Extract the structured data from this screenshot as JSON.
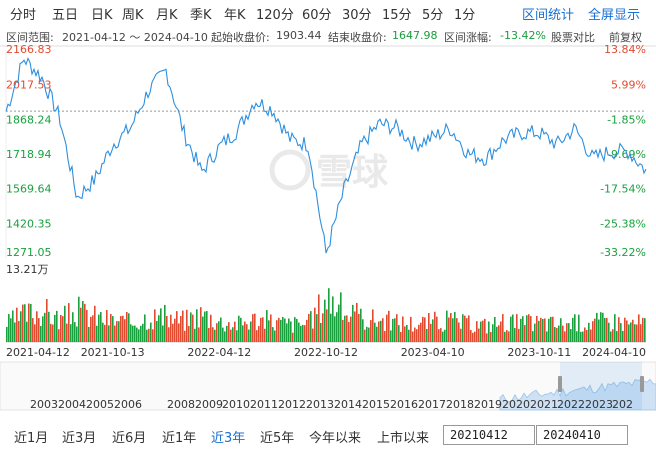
{
  "tabs": [
    "分时",
    "五日",
    "日K",
    "周K",
    "月K",
    "季K",
    "年K",
    "120分",
    "60分",
    "30分",
    "15分",
    "5分",
    "1分"
  ],
  "links": {
    "stats": "区间统计",
    "fullscreen": "全屏显示"
  },
  "info": {
    "range_label": "区间范围:",
    "range_value": "2021-04-12 ～ 2024-04-10",
    "start_label": "起始收盘价:",
    "start_value": "1903.44",
    "end_label": "结束收盘价:",
    "end_value": "1647.98",
    "change_label": "区间涨幅:",
    "change_value": "-13.42%",
    "compare": "股票对比",
    "adjust": "前复权"
  },
  "watermark": "雪球",
  "colors": {
    "line": "#2f8fdd",
    "up": "#e24a2f",
    "down": "#1aa03f",
    "accent": "#1a6fd2"
  },
  "chart_data": {
    "type": "line",
    "y_ticks_left": [
      "2166.83",
      "2017.53",
      "1868.24",
      "1718.94",
      "1569.64",
      "1420.35",
      "1271.05"
    ],
    "y_ticks_right": [
      "13.84%",
      "5.99%",
      "-1.85%",
      "-9.69%",
      "-17.54%",
      "-25.38%",
      "-33.22%"
    ],
    "ylim": [
      1271.05,
      2166.83
    ],
    "baseline": 1903.44,
    "x_labels": [
      "2021-04-12",
      "2021-10-13",
      "2022-04-12",
      "2022-10-12",
      "2023-04-10",
      "2023-10-11",
      "2024-04-10"
    ],
    "x": [
      "2021-04",
      "2021-05",
      "2021-06",
      "2021-07",
      "2021-08",
      "2021-09",
      "2021-10",
      "2021-11",
      "2021-12",
      "2022-01",
      "2022-02",
      "2022-03",
      "2022-04",
      "2022-05",
      "2022-06",
      "2022-07",
      "2022-08",
      "2022-09",
      "2022-10",
      "2022-11",
      "2022-12",
      "2023-01",
      "2023-02",
      "2023-03",
      "2023-04",
      "2023-05",
      "2023-06",
      "2023-07",
      "2023-08",
      "2023-09",
      "2023-10",
      "2023-11",
      "2023-12",
      "2024-01",
      "2024-02",
      "2024-03",
      "2024-04"
    ],
    "close": [
      1903,
      2130,
      2050,
      1880,
      1530,
      1610,
      1760,
      1830,
      1990,
      2080,
      1810,
      1640,
      1750,
      1820,
      1950,
      1910,
      1780,
      1760,
      1290,
      1560,
      1760,
      1850,
      1830,
      1760,
      1790,
      1830,
      1720,
      1700,
      1780,
      1810,
      1810,
      1760,
      1830,
      1700,
      1730,
      1730,
      1648
    ],
    "volume_label": "13.21万",
    "volume": [
      5.2,
      7.8,
      9.1,
      6.4,
      8.8,
      7.2,
      6.1,
      5.6,
      7.4,
      6.9,
      6.2,
      8.1,
      5.8,
      5.2,
      6.6,
      5.9,
      5.1,
      5.4,
      13.21,
      8.6,
      6.8,
      6.4,
      5.6,
      5.3,
      5.9,
      6.2,
      5.1,
      4.8,
      6.0,
      5.2,
      5.7,
      5.0,
      5.4,
      5.8,
      6.1,
      5.5,
      5.6
    ],
    "overview_years": [
      "2003",
      "2004",
      "2005",
      "2006",
      "2008",
      "2009",
      "2010",
      "2011",
      "2012",
      "2013",
      "2014",
      "2015",
      "2016",
      "2017",
      "2018",
      "2019",
      "2020",
      "2021",
      "2022",
      "2023",
      "202"
    ]
  },
  "range_buttons": [
    "近1月",
    "近3月",
    "近6月",
    "近1年",
    "近3年",
    "近5年",
    "今年以来",
    "上市以来"
  ],
  "range_active": "近3年",
  "date_from": "20210412",
  "date_to": "20240410"
}
